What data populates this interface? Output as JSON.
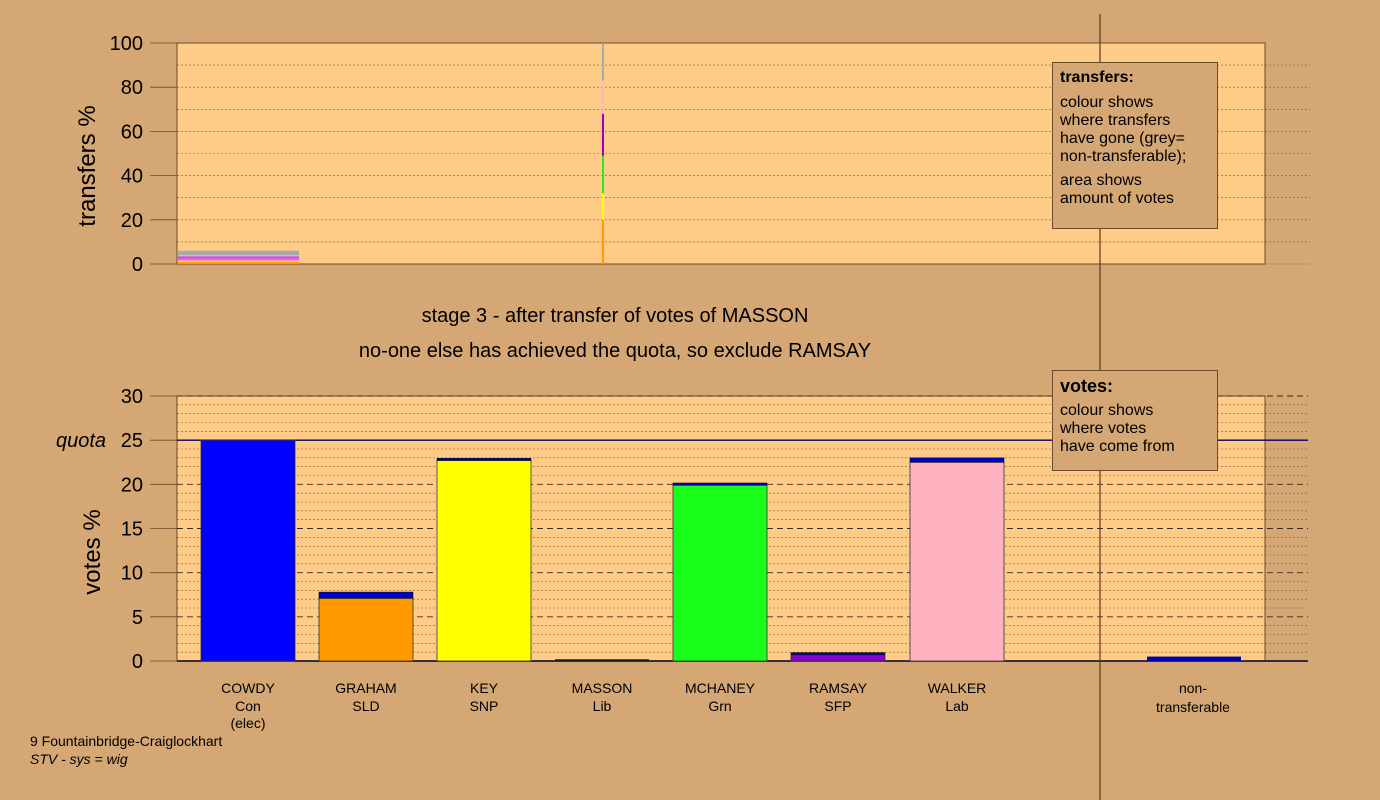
{
  "stage_title": "stage 3 - after transfer of votes of MASSON",
  "stage_subtitle": "no-one else has achieved the quota, so exclude RAMSAY",
  "footer": {
    "ward": "9 Fountainbridge-Craiglockhart",
    "system": "STV - sys = wig"
  },
  "transfers_legend": {
    "title": "transfers:",
    "lines1": [
      "colour shows",
      "where transfers",
      "have gone (grey=",
      "non-transferable);"
    ],
    "lines2": [
      "area shows",
      "amount of votes"
    ]
  },
  "votes_legend": {
    "title": "votes:",
    "lines": [
      "colour shows",
      "where votes",
      "have come from"
    ]
  },
  "chart_data": [
    {
      "type": "bar",
      "name": "transfers",
      "ylabel": "transfers %",
      "ylim": [
        0,
        100
      ],
      "yticks": [
        0,
        20,
        40,
        60,
        80,
        100
      ],
      "grid": true,
      "small_bar": {
        "column": "COWDY",
        "total": 6,
        "segments": [
          {
            "color": "#ff9900",
            "value": 1.0
          },
          {
            "color": "#ffff00",
            "value": 0.5
          },
          {
            "color": "#ff66cc",
            "value": 1.0
          },
          {
            "color": "#aa55ff",
            "value": 1.0
          },
          {
            "color": "#ffaabb",
            "value": 0.5
          },
          {
            "color": "#aaaaaa",
            "value": 2.0
          }
        ]
      },
      "transfer_line": {
        "column": "MASSON",
        "segments": [
          {
            "color": "#ff9900",
            "from": 0,
            "to": 20
          },
          {
            "color": "#ffff00",
            "from": 20,
            "to": 32
          },
          {
            "color": "#22ee22",
            "from": 32,
            "to": 49
          },
          {
            "color": "#9900cc",
            "from": 49,
            "to": 68
          },
          {
            "color": "#ffb6c1",
            "from": 68,
            "to": 83
          },
          {
            "color": "#aaaaaa",
            "from": 83,
            "to": 100
          }
        ]
      }
    },
    {
      "type": "bar",
      "name": "votes",
      "ylabel": "votes %",
      "ylim": [
        0,
        30
      ],
      "yticks": [
        0,
        5,
        10,
        15,
        20,
        25,
        30
      ],
      "quota": 25,
      "quota_label": "quota",
      "grid": true,
      "candidates": [
        {
          "name": "COWDY",
          "party": "Con",
          "note": "(elec)",
          "color": "#0000ff",
          "base": 25.0,
          "top": 0
        },
        {
          "name": "GRAHAM",
          "party": "SLD",
          "note": "",
          "color": "#ff9900",
          "base": 7.1,
          "top": 0.7
        },
        {
          "name": "KEY",
          "party": "SNP",
          "note": "",
          "color": "#ffff00",
          "base": 22.7,
          "top": 0.15
        },
        {
          "name": "MASSON",
          "party": "Lib",
          "note": "",
          "color": "#ffd27f",
          "base": 0,
          "top": 0
        },
        {
          "name": "MCHANEY",
          "party": "Grn",
          "note": "",
          "color": "#1aff1a",
          "base": 19.9,
          "top": 0.15
        },
        {
          "name": "RAMSAY",
          "party": "SFP",
          "note": "",
          "color": "#8800cc",
          "base": 0.7,
          "top": 0.2
        },
        {
          "name": "WALKER",
          "party": "Lab",
          "note": "",
          "color": "#ffb3c1",
          "base": 22.5,
          "top": 0.5
        }
      ],
      "non_transferable": {
        "label1": "non-",
        "label2": "transferable",
        "value": 0.5,
        "color": "#0000aa"
      }
    }
  ]
}
